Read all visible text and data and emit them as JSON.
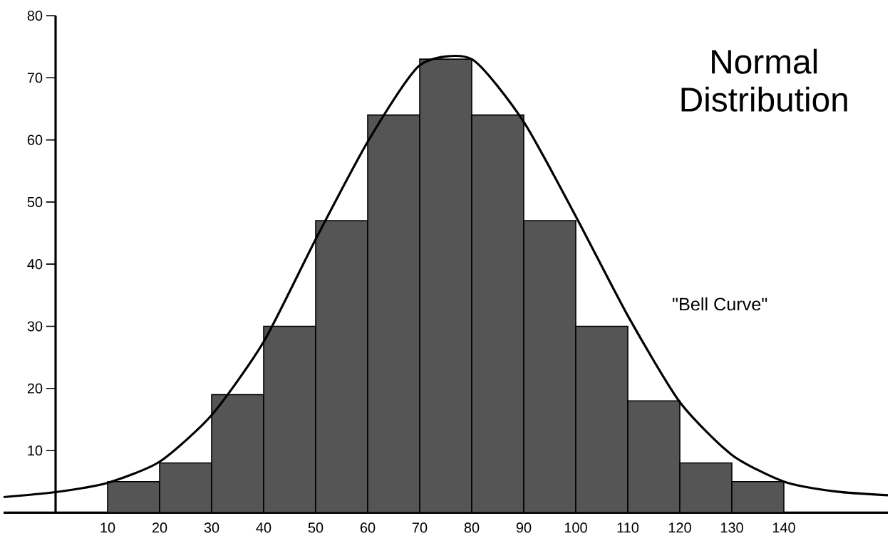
{
  "chart_data": {
    "type": "histogram",
    "title": "Normal Distribution",
    "bins": [
      10,
      20,
      30,
      40,
      50,
      60,
      70,
      80,
      90,
      100,
      110,
      120,
      130,
      140
    ],
    "values": [
      5,
      8,
      19,
      30,
      47,
      64,
      73,
      64,
      47,
      30,
      18,
      8,
      5
    ],
    "color": "#555555",
    "series": [
      {
        "type": "line",
        "color": "#000000",
        "x": [
          -10,
          0,
          10,
          20,
          30,
          40,
          50,
          60,
          70,
          80,
          90,
          100,
          110,
          120,
          130,
          140,
          150,
          160
        ],
        "values": [
          2.5,
          3.3,
          4.8,
          8.2,
          15.7,
          27.5,
          44,
          59.7,
          72,
          73,
          62.9,
          47.7,
          31.7,
          17.8,
          9.3,
          5,
          3.4,
          2.8
        ]
      }
    ],
    "annotations": [
      "\"Bell Curve\""
    ],
    "xlim": [
      -10,
      160
    ],
    "ylim": [
      0,
      80
    ],
    "xticks": [
      10,
      20,
      30,
      40,
      50,
      60,
      70,
      80,
      90,
      100,
      110,
      120,
      130,
      140
    ],
    "yticks": [
      10,
      20,
      30,
      40,
      50,
      60,
      70,
      80
    ],
    "grid": false
  }
}
